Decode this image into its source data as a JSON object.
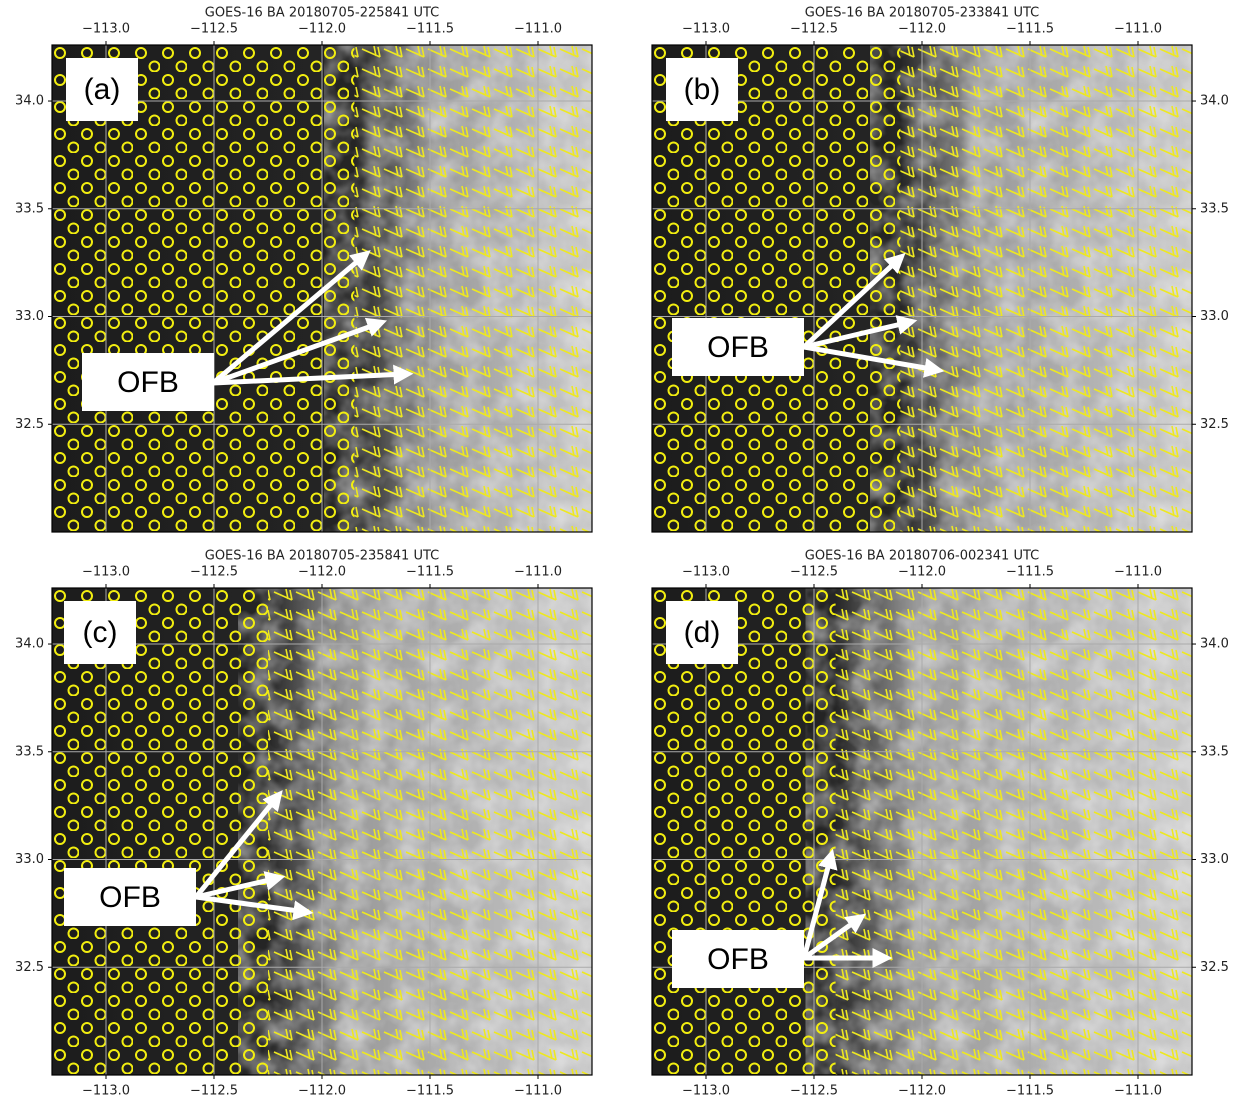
{
  "panels": [
    {
      "title": "GOES-16 BA 20180705-225841 UTC",
      "label": "(a)",
      "annotation": "OFB"
    },
    {
      "title": "GOES-16 BA 20180705-233841 UTC",
      "label": "(b)",
      "annotation": "OFB"
    },
    {
      "title": "GOES-16 BA 20180705-235841 UTC",
      "label": "(c)",
      "annotation": "OFB"
    },
    {
      "title": "GOES-16 BA 20180706-002341 UTC",
      "label": "(d)",
      "annotation": "OFB"
    }
  ],
  "xlim": [
    -113.25,
    -110.75
  ],
  "ylim": [
    32.0,
    34.26
  ],
  "xticks": [
    {
      "value": -113.0,
      "label": "−113.0"
    },
    {
      "value": -112.5,
      "label": "−112.5"
    },
    {
      "value": -112.0,
      "label": "−112.0"
    },
    {
      "value": -111.5,
      "label": "−111.5"
    },
    {
      "value": -111.0,
      "label": "−111.0"
    }
  ],
  "yticks": [
    {
      "value": 32.5,
      "label": "32.5"
    },
    {
      "value": 33.0,
      "label": "33.0"
    },
    {
      "value": 33.5,
      "label": "33.5"
    },
    {
      "value": 34.0,
      "label": "34.0"
    }
  ]
}
